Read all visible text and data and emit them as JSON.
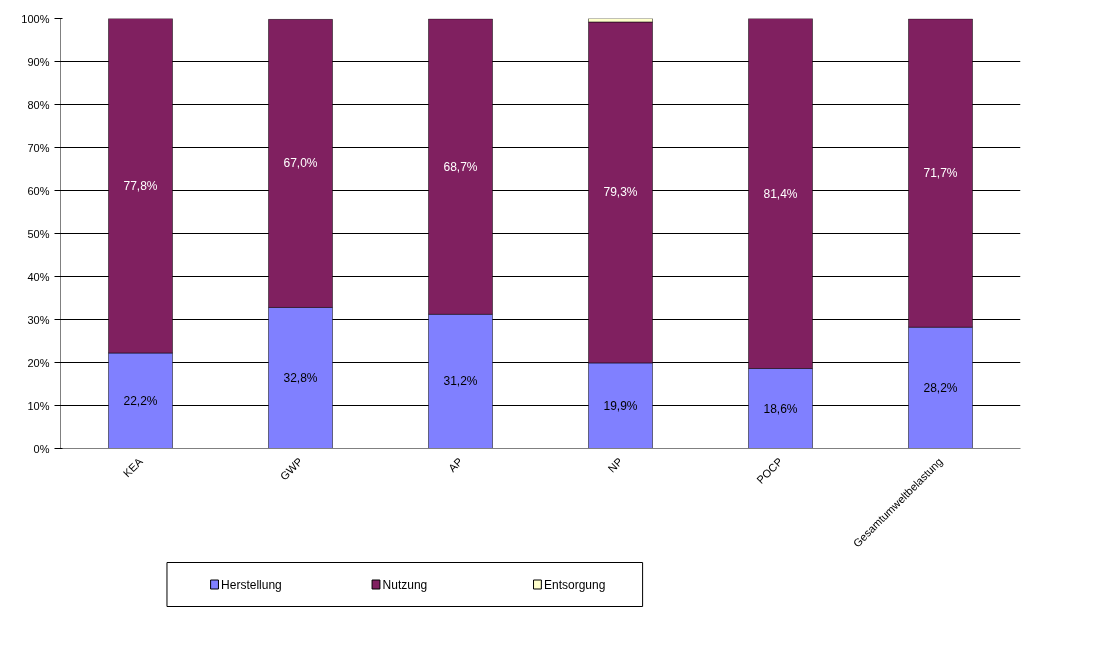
{
  "chart_data": {
    "type": "bar",
    "stacked": true,
    "categories": [
      "KEA",
      "GWP",
      "AP",
      "NP",
      "POCP",
      "Gesamtumweltbelastung"
    ],
    "series": [
      {
        "name": "Herstellung",
        "color": "#8080ff",
        "values": [
          22.2,
          32.8,
          31.2,
          19.9,
          18.6,
          28.2
        ],
        "value_labels": [
          "22,2%",
          "32,8%",
          "31,2%",
          "19,9%",
          "18,6%",
          "28,2%"
        ]
      },
      {
        "name": "Nutzung",
        "color": "#802060",
        "values": [
          77.8,
          67.0,
          68.7,
          79.3,
          81.4,
          71.7
        ],
        "value_labels": [
          "77,8%",
          "67,0%",
          "68,7%",
          "79,3%",
          "81,4%",
          "71,7%"
        ]
      },
      {
        "name": "Entsorgung",
        "color": "#ffffcc",
        "values": [
          0,
          0,
          0,
          0.8,
          0,
          0
        ]
      }
    ],
    "ylim": [
      0,
      100
    ],
    "yticks": [
      {
        "value": 0,
        "label": "0%"
      },
      {
        "value": 10,
        "label": "10%"
      },
      {
        "value": 20,
        "label": "20%"
      },
      {
        "value": 30,
        "label": "30%"
      },
      {
        "value": 40,
        "label": "40%"
      },
      {
        "value": 50,
        "label": "50%"
      },
      {
        "value": 60,
        "label": "60%"
      },
      {
        "value": 70,
        "label": "70%"
      },
      {
        "value": 80,
        "label": "80%"
      },
      {
        "value": 90,
        "label": "90%"
      },
      {
        "value": 100,
        "label": "100%"
      }
    ],
    "grid": "y",
    "legend": "bottom left"
  }
}
